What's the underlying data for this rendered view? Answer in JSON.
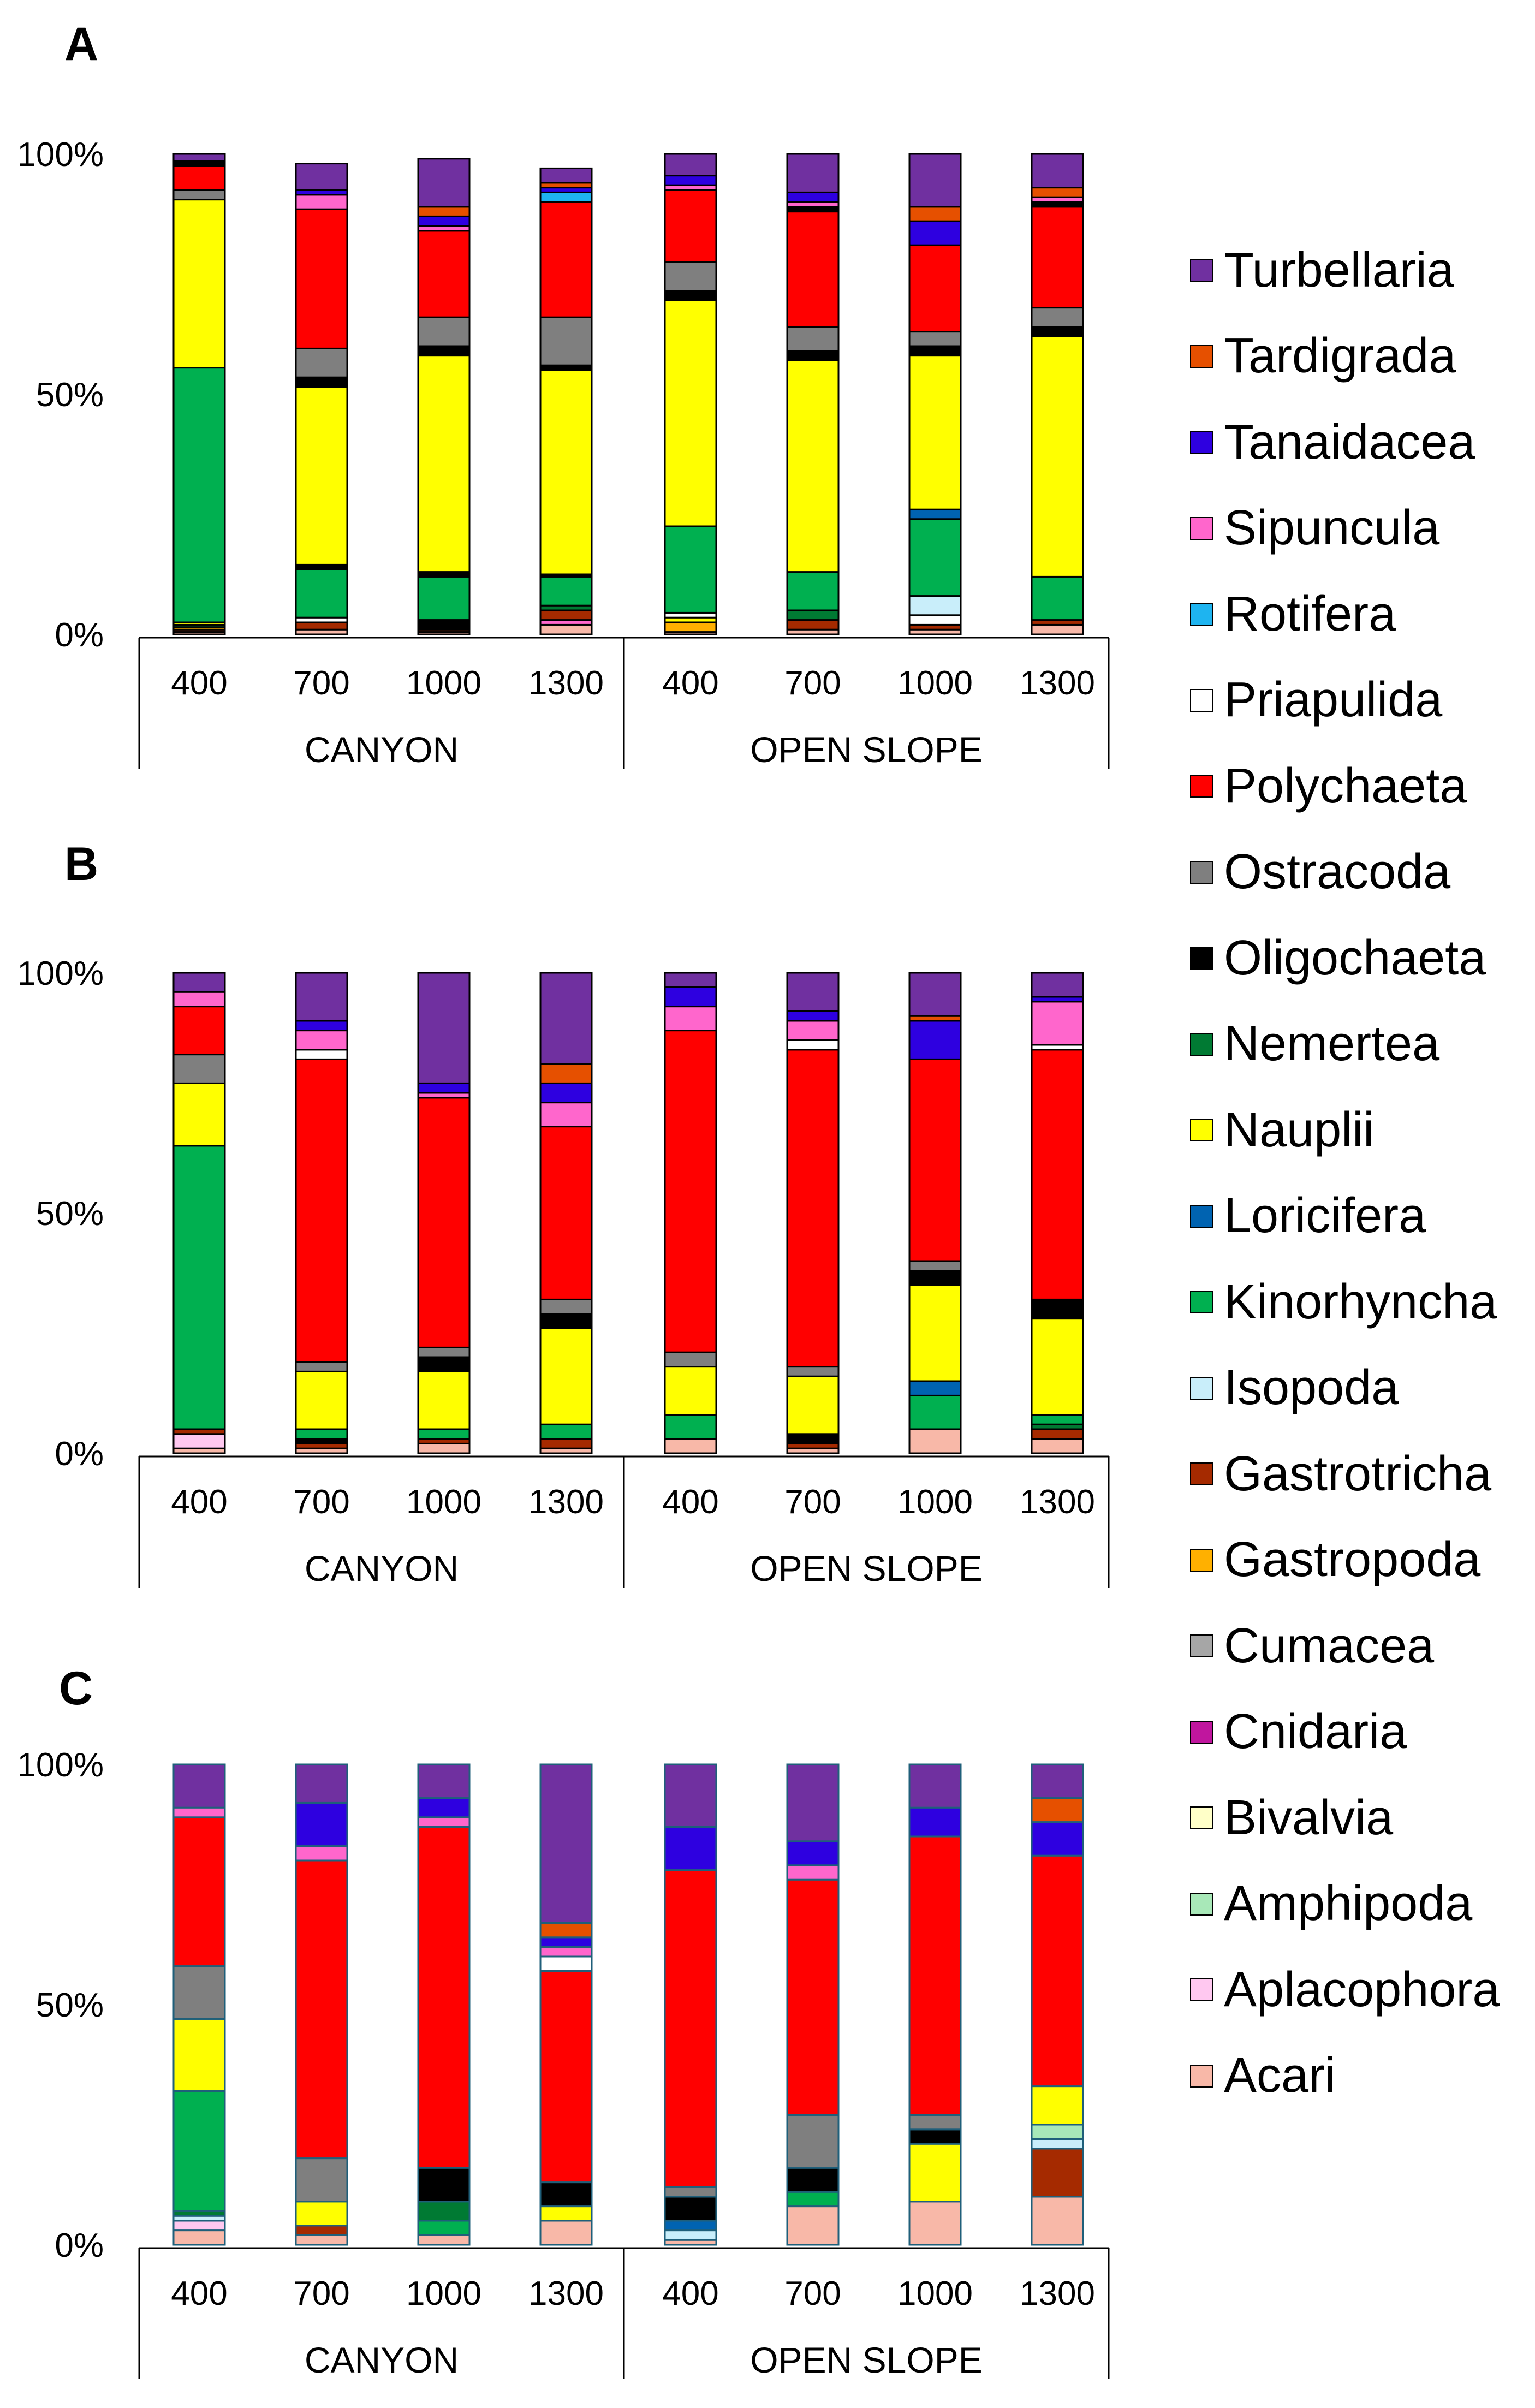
{
  "taxa": [
    {
      "name": "Turbellaria",
      "color": "#7030A0"
    },
    {
      "name": "Tardigrada",
      "color": "#E65000"
    },
    {
      "name": "Tanaidacea",
      "color": "#2E00E0"
    },
    {
      "name": "Sipuncula",
      "color": "#FF66CC"
    },
    {
      "name": "Rotifera",
      "color": "#1EB4F0"
    },
    {
      "name": "Priapulida",
      "color": "#FFFFFF"
    },
    {
      "name": "Polychaeta",
      "color": "#FF0000"
    },
    {
      "name": "Ostracoda",
      "color": "#7F7F7F"
    },
    {
      "name": "Oligochaeta",
      "color": "#000000"
    },
    {
      "name": "Nemertea",
      "color": "#007A33"
    },
    {
      "name": "Nauplii",
      "color": "#FFFF00"
    },
    {
      "name": "Loricifera",
      "color": "#0063B1"
    },
    {
      "name": "Kinorhyncha",
      "color": "#00B050"
    },
    {
      "name": "Isopoda",
      "color": "#C9EEFA"
    },
    {
      "name": "Gastrotricha",
      "color": "#A52A00"
    },
    {
      "name": "Gastropoda",
      "color": "#FFB000"
    },
    {
      "name": "Cumacea",
      "color": "#A6A6A6"
    },
    {
      "name": "Cnidaria",
      "color": "#C0169E"
    },
    {
      "name": "Bivalvia",
      "color": "#FFFFC8"
    },
    {
      "name": "Amphipoda",
      "color": "#A8E8B8"
    },
    {
      "name": "Aplacophora",
      "color": "#FFC8F0"
    },
    {
      "name": "Acari",
      "color": "#F8B8A8"
    }
  ],
  "chart_data": [
    {
      "type": "bar",
      "stacked": true,
      "panel": "A",
      "categories": [
        "400",
        "700",
        "1000",
        "1300",
        "400",
        "700",
        "1000",
        "1300"
      ],
      "groups": [
        "CANYON",
        "OPEN SLOPE"
      ],
      "yticks": [
        "0%",
        "50%",
        "100%"
      ],
      "ylim": [
        0,
        100
      ],
      "stacks": [
        [
          [
            "Acari",
            0.5
          ],
          [
            "Gastrotricha",
            0.5
          ],
          [
            "Gastropoda",
            0.5
          ],
          [
            "Nemertea",
            0.5
          ],
          [
            "Nauplii",
            0.5
          ],
          [
            "Kinorhyncha",
            53
          ],
          [
            "Nauplii",
            35
          ],
          [
            "Ostracoda",
            2
          ],
          [
            "Polychaeta",
            5
          ],
          [
            "Oligochaeta",
            1
          ],
          [
            "Turbellaria",
            1.5
          ]
        ],
        [
          [
            "Acari",
            1
          ],
          [
            "Gastrotricha",
            1.5
          ],
          [
            "Priapulida",
            1
          ],
          [
            "Kinorhyncha",
            10
          ],
          [
            "Oligochaeta",
            1
          ],
          [
            "Nauplii",
            37
          ],
          [
            "Oligochaeta",
            2
          ],
          [
            "Ostracoda",
            6
          ],
          [
            "Polychaeta",
            29
          ],
          [
            "Sipuncula",
            3
          ],
          [
            "Tanaidacea",
            1
          ],
          [
            "Turbellaria",
            5.5
          ]
        ],
        [
          [
            "Acari",
            0.5
          ],
          [
            "Gastrotricha",
            0.5
          ],
          [
            "Oligochaeta",
            2
          ],
          [
            "Kinorhyncha",
            9
          ],
          [
            "Oligochaeta",
            1
          ],
          [
            "Nauplii",
            45
          ],
          [
            "Oligochaeta",
            2
          ],
          [
            "Ostracoda",
            6
          ],
          [
            "Polychaeta",
            18
          ],
          [
            "Sipuncula",
            1
          ],
          [
            "Tanaidacea",
            2
          ],
          [
            "Tardigrada",
            2
          ],
          [
            "Turbellaria",
            10
          ]
        ],
        [
          [
            "Acari",
            2
          ],
          [
            "Sipuncula",
            1
          ],
          [
            "Gastrotricha",
            2
          ],
          [
            "Nemertea",
            1
          ],
          [
            "Kinorhyncha",
            6
          ],
          [
            "Oligochaeta",
            0.5
          ],
          [
            "Nauplii",
            42.5
          ],
          [
            "Oligochaeta",
            1
          ],
          [
            "Ostracoda",
            10
          ],
          [
            "Polychaeta",
            24
          ],
          [
            "Rotifera",
            2
          ],
          [
            "Tanaidacea",
            1
          ],
          [
            "Tardigrada",
            1
          ],
          [
            "Turbellaria",
            3
          ]
        ],
        [
          [
            "Acari",
            0.5
          ],
          [
            "Gastropoda",
            2
          ],
          [
            "Nauplii",
            1
          ],
          [
            "Priapulida",
            1
          ],
          [
            "Kinorhyncha",
            18
          ],
          [
            "Nauplii",
            47
          ],
          [
            "Oligochaeta",
            2
          ],
          [
            "Ostracoda",
            6
          ],
          [
            "Polychaeta",
            15
          ],
          [
            "Sipuncula",
            1
          ],
          [
            "Tanaidacea",
            2
          ],
          [
            "Turbellaria",
            4.5
          ]
        ],
        [
          [
            "Acari",
            1
          ],
          [
            "Gastrotricha",
            2
          ],
          [
            "Nemertea",
            2
          ],
          [
            "Kinorhyncha",
            8
          ],
          [
            "Nauplii",
            44
          ],
          [
            "Oligochaeta",
            2
          ],
          [
            "Ostracoda",
            5
          ],
          [
            "Polychaeta",
            24
          ],
          [
            "Oligochaeta",
            1
          ],
          [
            "Sipuncula",
            1
          ],
          [
            "Tanaidacea",
            2
          ],
          [
            "Turbellaria",
            8
          ]
        ],
        [
          [
            "Acari",
            1
          ],
          [
            "Gastrotricha",
            1
          ],
          [
            "Priapulida",
            2
          ],
          [
            "Isopoda",
            4
          ],
          [
            "Kinorhyncha",
            16
          ],
          [
            "Loricifera",
            2
          ],
          [
            "Nauplii",
            32
          ],
          [
            "Oligochaeta",
            2
          ],
          [
            "Ostracoda",
            3
          ],
          [
            "Polychaeta",
            18
          ],
          [
            "Tanaidacea",
            5
          ],
          [
            "Tardigrada",
            3
          ],
          [
            "Turbellaria",
            11
          ]
        ],
        [
          [
            "Acari",
            2
          ],
          [
            "Gastrotricha",
            1
          ],
          [
            "Kinorhyncha",
            9
          ],
          [
            "Nauplii",
            50
          ],
          [
            "Oligochaeta",
            2
          ],
          [
            "Ostracoda",
            4
          ],
          [
            "Polychaeta",
            21
          ],
          [
            "Oligochaeta",
            1
          ],
          [
            "Sipuncula",
            1
          ],
          [
            "Tardigrada",
            2
          ],
          [
            "Turbellaria",
            7
          ]
        ]
      ]
    },
    {
      "type": "bar",
      "stacked": true,
      "panel": "B",
      "categories": [
        "400",
        "700",
        "1000",
        "1300",
        "400",
        "700",
        "1000",
        "1300"
      ],
      "groups": [
        "CANYON",
        "OPEN SLOPE"
      ],
      "yticks": [
        "0%",
        "50%",
        "100%"
      ],
      "ylim": [
        0,
        100
      ],
      "stacks": [
        [
          [
            "Acari",
            1
          ],
          [
            "Aplacophora",
            3
          ],
          [
            "Gastrotricha",
            1
          ],
          [
            "Kinorhyncha",
            59
          ],
          [
            "Nauplii",
            13
          ],
          [
            "Ostracoda",
            6
          ],
          [
            "Polychaeta",
            10
          ],
          [
            "Sipuncula",
            3
          ],
          [
            "Turbellaria",
            4
          ]
        ],
        [
          [
            "Acari",
            1
          ],
          [
            "Gastrotricha",
            1
          ],
          [
            "Oligochaeta",
            1
          ],
          [
            "Kinorhyncha",
            2
          ],
          [
            "Nauplii",
            12
          ],
          [
            "Ostracoda",
            2
          ],
          [
            "Polychaeta",
            63
          ],
          [
            "Priapulida",
            2
          ],
          [
            "Sipuncula",
            4
          ],
          [
            "Tanaidacea",
            2
          ],
          [
            "Turbellaria",
            10
          ]
        ],
        [
          [
            "Acari",
            2
          ],
          [
            "Gastrotricha",
            1
          ],
          [
            "Kinorhyncha",
            2
          ],
          [
            "Nauplii",
            12
          ],
          [
            "Oligochaeta",
            3
          ],
          [
            "Ostracoda",
            2
          ],
          [
            "Polychaeta",
            52
          ],
          [
            "Sipuncula",
            1
          ],
          [
            "Tanaidacea",
            2
          ],
          [
            "Turbellaria",
            23
          ]
        ],
        [
          [
            "Acari",
            1
          ],
          [
            "Gastrotricha",
            2
          ],
          [
            "Kinorhyncha",
            3
          ],
          [
            "Nauplii",
            20
          ],
          [
            "Oligochaeta",
            3
          ],
          [
            "Ostracoda",
            3
          ],
          [
            "Polychaeta",
            36
          ],
          [
            "Sipuncula",
            5
          ],
          [
            "Tanaidacea",
            4
          ],
          [
            "Tardigrada",
            4
          ],
          [
            "Turbellaria",
            19
          ]
        ],
        [
          [
            "Acari",
            3
          ],
          [
            "Kinorhyncha",
            5
          ],
          [
            "Nauplii",
            10
          ],
          [
            "Ostracoda",
            3
          ],
          [
            "Polychaeta",
            67
          ],
          [
            "Sipuncula",
            5
          ],
          [
            "Tanaidacea",
            4
          ],
          [
            "Turbellaria",
            3
          ]
        ],
        [
          [
            "Acari",
            1
          ],
          [
            "Gastrotricha",
            1
          ],
          [
            "Oligochaeta",
            2
          ],
          [
            "Nauplii",
            12
          ],
          [
            "Ostracoda",
            2
          ],
          [
            "Polychaeta",
            66
          ],
          [
            "Priapulida",
            2
          ],
          [
            "Sipuncula",
            4
          ],
          [
            "Tanaidacea",
            2
          ],
          [
            "Turbellaria",
            8
          ]
        ],
        [
          [
            "Acari",
            5
          ],
          [
            "Kinorhyncha",
            7
          ],
          [
            "Loricifera",
            3
          ],
          [
            "Nauplii",
            20
          ],
          [
            "Oligochaeta",
            3
          ],
          [
            "Ostracoda",
            2
          ],
          [
            "Polychaeta",
            42
          ],
          [
            "Tanaidacea",
            8
          ],
          [
            "Tardigrada",
            1
          ],
          [
            "Turbellaria",
            9
          ]
        ],
        [
          [
            "Acari",
            3
          ],
          [
            "Gastrotricha",
            2
          ],
          [
            "Nemertea",
            1
          ],
          [
            "Kinorhyncha",
            2
          ],
          [
            "Nauplii",
            20
          ],
          [
            "Oligochaeta",
            4
          ],
          [
            "Polychaeta",
            52
          ],
          [
            "Priapulida",
            1
          ],
          [
            "Sipuncula",
            9
          ],
          [
            "Tanaidacea",
            1
          ],
          [
            "Turbellaria",
            5
          ]
        ]
      ]
    },
    {
      "type": "bar",
      "stacked": true,
      "panel": "C",
      "categories": [
        "400",
        "700",
        "1000",
        "1300",
        "400",
        "700",
        "1000",
        "1300"
      ],
      "groups": [
        "CANYON",
        "OPEN SLOPE"
      ],
      "yticks": [
        "0%",
        "50%",
        "100%"
      ],
      "ylim": [
        0,
        100
      ],
      "stacks": [
        [
          [
            "Acari",
            3
          ],
          [
            "Aplacophora",
            2
          ],
          [
            "Isopoda",
            1
          ],
          [
            "Nemertea",
            1
          ],
          [
            "Kinorhyncha",
            25
          ],
          [
            "Nauplii",
            15
          ],
          [
            "Ostracoda",
            11
          ],
          [
            "Polychaeta",
            31
          ],
          [
            "Sipuncula",
            2
          ],
          [
            "Turbellaria",
            9
          ]
        ],
        [
          [
            "Acari",
            2
          ],
          [
            "Gastrotricha",
            2
          ],
          [
            "Nauplii",
            5
          ],
          [
            "Ostracoda",
            9
          ],
          [
            "Polychaeta",
            62
          ],
          [
            "Sipuncula",
            3
          ],
          [
            "Tanaidacea",
            9
          ],
          [
            "Turbellaria",
            8
          ]
        ],
        [
          [
            "Acari",
            2
          ],
          [
            "Kinorhyncha",
            3
          ],
          [
            "Nemertea",
            4
          ],
          [
            "Oligochaeta",
            7
          ],
          [
            "Polychaeta",
            71
          ],
          [
            "Sipuncula",
            2
          ],
          [
            "Tanaidacea",
            4
          ],
          [
            "Turbellaria",
            7
          ]
        ],
        [
          [
            "Acari",
            5
          ],
          [
            "Nauplii",
            3
          ],
          [
            "Oligochaeta",
            5
          ],
          [
            "Polychaeta",
            44
          ],
          [
            "Priapulida",
            3
          ],
          [
            "Sipuncula",
            2
          ],
          [
            "Tanaidacea",
            2
          ],
          [
            "Tardigrada",
            3
          ],
          [
            "Turbellaria",
            33
          ]
        ],
        [
          [
            "Acari",
            1
          ],
          [
            "Isopoda",
            2
          ],
          [
            "Loricifera",
            2
          ],
          [
            "Oligochaeta",
            5
          ],
          [
            "Ostracoda",
            2
          ],
          [
            "Polychaeta",
            66
          ],
          [
            "Tanaidacea",
            9
          ],
          [
            "Turbellaria",
            13
          ]
        ],
        [
          [
            "Acari",
            8
          ],
          [
            "Kinorhyncha",
            3
          ],
          [
            "Oligochaeta",
            5
          ],
          [
            "Ostracoda",
            11
          ],
          [
            "Polychaeta",
            49
          ],
          [
            "Sipuncula",
            3
          ],
          [
            "Tanaidacea",
            5
          ],
          [
            "Turbellaria",
            16
          ]
        ],
        [
          [
            "Acari",
            9
          ],
          [
            "Nauplii",
            12
          ],
          [
            "Oligochaeta",
            3
          ],
          [
            "Ostracoda",
            3
          ],
          [
            "Polychaeta",
            58
          ],
          [
            "Tanaidacea",
            6
          ],
          [
            "Turbellaria",
            9
          ]
        ],
        [
          [
            "Acari",
            10
          ],
          [
            "Gastrotricha",
            10
          ],
          [
            "Isopoda",
            2
          ],
          [
            "Amphipoda",
            3
          ],
          [
            "Nauplii",
            8
          ],
          [
            "Polychaeta",
            48
          ],
          [
            "Tanaidacea",
            7
          ],
          [
            "Tardigrada",
            5
          ],
          [
            "Turbellaria",
            7
          ]
        ]
      ]
    }
  ]
}
